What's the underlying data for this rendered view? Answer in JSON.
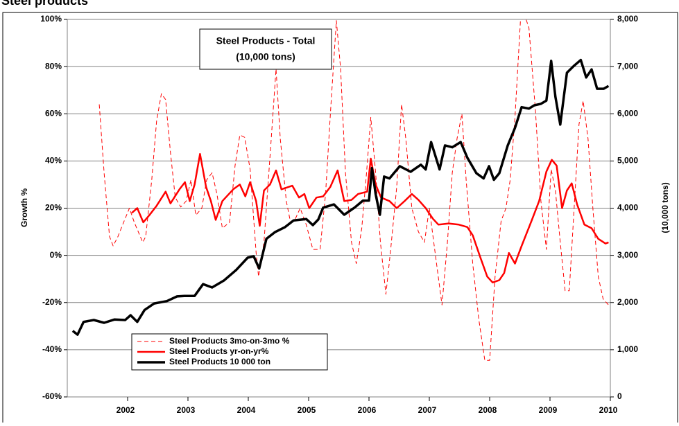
{
  "chart_data": {
    "type": "line",
    "title": "Steel products",
    "annotation": [
      "Steel Products - Total",
      "(10,000 tons)"
    ],
    "y_label": "Growth %",
    "y2_label": "(10,000 tons)",
    "xlim": [
      2001,
      2010
    ],
    "xticks": [
      2002,
      2003,
      2004,
      2005,
      2006,
      2007,
      2008,
      2009,
      2010
    ],
    "ylim": [
      -60,
      100
    ],
    "yticks": [
      {
        "value": -60,
        "label": "-60%"
      },
      {
        "value": -40,
        "label": "-40%"
      },
      {
        "value": -20,
        "label": "-20%"
      },
      {
        "value": 0,
        "label": "0%"
      },
      {
        "value": 20,
        "label": "20%"
      },
      {
        "value": 40,
        "label": "40%"
      },
      {
        "value": 60,
        "label": "60%"
      },
      {
        "value": 80,
        "label": "80%"
      },
      {
        "value": 100,
        "label": "100%"
      }
    ],
    "y2lim": [
      0,
      8000
    ],
    "y2ticks": [
      0,
      {
        "value": 1000,
        "label": "1,000"
      },
      {
        "value": 2000,
        "label": "2,000"
      },
      {
        "value": 3000,
        "label": "3,000"
      },
      {
        "value": 4000,
        "label": "4,000"
      },
      {
        "value": 5000,
        "label": "5,000"
      },
      {
        "value": 6000,
        "label": "6,000"
      },
      {
        "value": 7000,
        "label": "7,000"
      },
      {
        "value": 8000,
        "label": "8,000"
      }
    ],
    "grid": true,
    "legend": "lower left",
    "series": [
      {
        "name": "Steel Products 3mo-on-3mo %",
        "color": "#ff0000",
        "dashed": true,
        "width": 1,
        "x": [
          2001.53,
          2001.61,
          2001.7,
          2001.76,
          2001.84,
          2001.91,
          2002.03,
          2002.11,
          2002.25,
          2002.3,
          2002.4,
          2002.48,
          2002.56,
          2002.63,
          2002.71,
          2002.79,
          2002.88,
          2002.97,
          2003.05,
          2003.13,
          2003.23,
          2003.31,
          2003.4,
          2003.48,
          2003.57,
          2003.69,
          2003.78,
          2003.86,
          2003.94,
          2004.03,
          2004.13,
          2004.17,
          2004.26,
          2004.38,
          2004.46,
          2004.53,
          2004.63,
          2004.7,
          2004.78,
          2004.86,
          2004.96,
          2005.07,
          2005.19,
          2005.28,
          2005.37,
          2005.46,
          2005.53,
          2005.61,
          2005.71,
          2005.79,
          2005.88,
          2005.96,
          2006.03,
          2006.11,
          2006.19,
          2006.28,
          2006.36,
          2006.46,
          2006.54,
          2006.61,
          2006.71,
          2006.82,
          2006.92,
          2007.0,
          2007.12,
          2007.21,
          2007.3,
          2007.38,
          2007.46,
          2007.54,
          2007.61,
          2007.72,
          2007.82,
          2007.92,
          2008.0,
          2008.09,
          2008.19,
          2008.27,
          2008.34,
          2008.42,
          2008.51,
          2008.59,
          2008.65,
          2008.76,
          2008.85,
          2008.94,
          2009.02,
          2009.09,
          2009.17,
          2009.25,
          2009.32,
          2009.4,
          2009.48,
          2009.55,
          2009.63,
          2009.71,
          2009.8,
          2009.88,
          2009.97
        ],
        "values": [
          64,
          35,
          8,
          4,
          8,
          12.5,
          20,
          14,
          5.5,
          8,
          32,
          57,
          68.5,
          66,
          43.5,
          24.5,
          20.5,
          23,
          32,
          17,
          20,
          32,
          35,
          26,
          11.5,
          14,
          38,
          51,
          50,
          36.5,
          1,
          -9,
          5.5,
          49.5,
          79,
          49.5,
          23,
          14,
          15.5,
          20,
          13,
          2.5,
          2.5,
          26,
          64,
          99.5,
          79,
          35,
          5.5,
          -3.5,
          11.5,
          35,
          58.5,
          35,
          5.5,
          -16.5,
          2.5,
          29,
          64,
          49.5,
          20,
          10,
          5.5,
          20,
          -3.5,
          -21,
          5.5,
          35,
          49.5,
          60,
          32,
          -3.5,
          -27,
          -44.5,
          -44.5,
          -9,
          14.5,
          20,
          32,
          58.5,
          99.5,
          101,
          96.5,
          61,
          23,
          2.5,
          36.5,
          27.5,
          5.5,
          -15,
          -15,
          20,
          55.5,
          65.5,
          49.5,
          20,
          -9,
          -18.5,
          -21
        ]
      },
      {
        "name": "Steel Products yr-on-yr%",
        "color": "#ff0000",
        "dashed": false,
        "width": 2.5,
        "x": [
          2002.07,
          2002.16,
          2002.26,
          2002.36,
          2002.48,
          2002.63,
          2002.71,
          2002.86,
          2002.95,
          2003.03,
          2003.11,
          2003.2,
          2003.3,
          2003.38,
          2003.46,
          2003.57,
          2003.75,
          2003.86,
          2003.95,
          2004.03,
          2004.13,
          2004.19,
          2004.26,
          2004.36,
          2004.46,
          2004.55,
          2004.73,
          2004.84,
          2004.93,
          2005.01,
          2005.13,
          2005.24,
          2005.36,
          2005.48,
          2005.59,
          2005.71,
          2005.82,
          2005.97,
          2006.03,
          2006.11,
          2006.2,
          2006.34,
          2006.46,
          2006.59,
          2006.71,
          2006.82,
          2006.94,
          2007.06,
          2007.15,
          2007.32,
          2007.49,
          2007.63,
          2007.72,
          2007.84,
          2007.96,
          2008.05,
          2008.16,
          2008.24,
          2008.32,
          2008.42,
          2008.53,
          2008.7,
          2008.82,
          2008.94,
          2009.03,
          2009.11,
          2009.2,
          2009.28,
          2009.36,
          2009.45,
          2009.57,
          2009.69,
          2009.8,
          2009.92,
          2009.97
        ],
        "values": [
          18,
          20,
          14,
          17,
          21,
          27,
          22,
          28,
          31,
          23,
          30,
          43,
          29,
          23,
          15,
          23,
          28,
          30,
          25,
          31,
          23,
          12.5,
          27.5,
          30,
          36,
          28,
          29.5,
          24.5,
          26,
          20,
          24.5,
          25,
          29,
          36,
          23,
          23.5,
          26,
          27,
          41,
          30,
          24.5,
          23,
          20,
          23,
          26,
          23.5,
          20,
          15.5,
          13,
          13.5,
          13,
          12,
          8.5,
          -0.5,
          -9,
          -11.5,
          -10.5,
          -7.5,
          1,
          -3.5,
          4,
          15,
          23,
          35.5,
          40.5,
          38,
          20,
          27.5,
          30.5,
          21.5,
          13,
          11.5,
          7,
          5,
          5.5
        ]
      },
      {
        "name": "Steel Products 10 000 ton",
        "color": "#000000",
        "dashed": false,
        "width": 3.5,
        "axis": "y2",
        "x": [
          2001.09,
          2001.17,
          2001.27,
          2001.44,
          2001.61,
          2001.78,
          2001.96,
          2002.05,
          2002.16,
          2002.28,
          2002.44,
          2002.65,
          2002.82,
          2002.94,
          2003.11,
          2003.25,
          2003.4,
          2003.6,
          2003.8,
          2003.99,
          2004.09,
          2004.18,
          2004.3,
          2004.44,
          2004.61,
          2004.75,
          2004.96,
          2005.07,
          2005.16,
          2005.24,
          2005.42,
          2005.59,
          2005.76,
          2005.9,
          2006.0,
          2006.05,
          2006.11,
          2006.18,
          2006.25,
          2006.34,
          2006.51,
          2006.69,
          2006.86,
          2006.94,
          2007.03,
          2007.17,
          2007.26,
          2007.38,
          2007.52,
          2007.63,
          2007.78,
          2007.9,
          2007.99,
          2008.07,
          2008.16,
          2008.3,
          2008.42,
          2008.53,
          2008.65,
          2008.74,
          2008.85,
          2008.94,
          2009.02,
          2009.09,
          2009.17,
          2009.28,
          2009.4,
          2009.51,
          2009.6,
          2009.69,
          2009.78,
          2009.89,
          2009.97
        ],
        "values": [
          1400,
          1320,
          1590,
          1630,
          1570,
          1640,
          1630,
          1730,
          1590,
          1840,
          1980,
          2030,
          2130,
          2140,
          2140,
          2390,
          2320,
          2470,
          2690,
          2950,
          2980,
          2720,
          3350,
          3490,
          3600,
          3740,
          3770,
          3640,
          3760,
          4010,
          4080,
          3860,
          4010,
          4160,
          4160,
          4850,
          4300,
          3860,
          4670,
          4630,
          4890,
          4770,
          4920,
          4820,
          5400,
          4820,
          5330,
          5290,
          5400,
          5070,
          4740,
          4630,
          4890,
          4600,
          4740,
          5330,
          5700,
          6140,
          6110,
          6180,
          6210,
          6280,
          7120,
          6360,
          5770,
          6870,
          7020,
          7140,
          6770,
          6940,
          6530,
          6530,
          6590
        ]
      }
    ]
  }
}
